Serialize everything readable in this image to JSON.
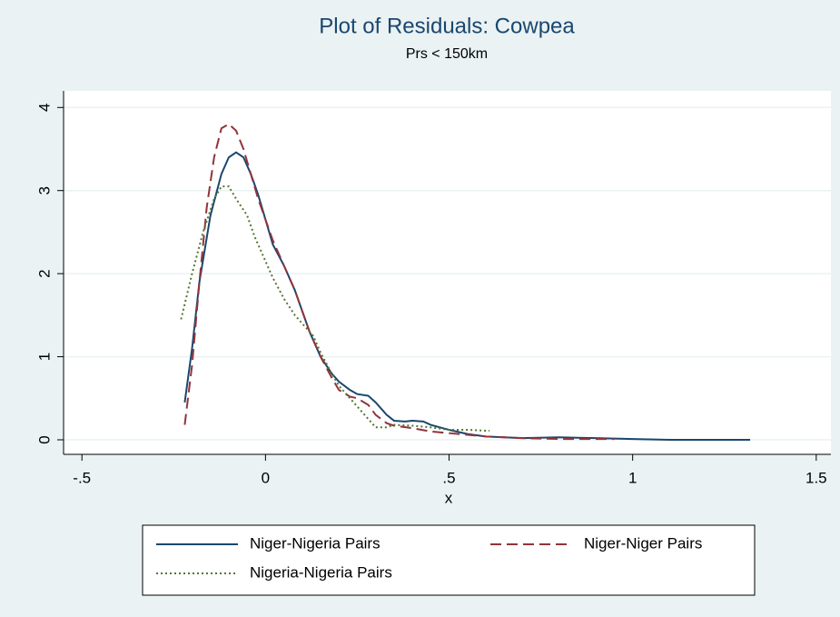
{
  "chart_data": {
    "type": "line",
    "title": "Plot of Residuals: Cowpea",
    "subtitle": "Prs < 150km",
    "x_label": "x",
    "xlim": [
      -0.55,
      1.54
    ],
    "ylim": [
      -0.175,
      4.2
    ],
    "xticks": [
      {
        "value": -0.5,
        "label": "-.5"
      },
      0,
      {
        "value": 0.5,
        "label": ".5"
      },
      1,
      1.5
    ],
    "yticks": [
      0,
      1,
      2,
      3,
      4
    ],
    "grid": true,
    "series": [
      {
        "name": "Niger-Nigeria Pairs",
        "color": "#1a476f",
        "dash": "solid",
        "x": [
          -0.22,
          -0.2,
          -0.18,
          -0.15,
          -0.12,
          -0.1,
          -0.08,
          -0.06,
          -0.04,
          -0.02,
          0,
          0.02,
          0.05,
          0.08,
          0.1,
          0.12,
          0.15,
          0.18,
          0.2,
          0.23,
          0.25,
          0.28,
          0.3,
          0.33,
          0.35,
          0.38,
          0.4,
          0.43,
          0.45,
          0.5,
          0.55,
          0.6,
          0.7,
          0.8,
          0.9,
          1.0,
          1.1,
          1.2,
          1.32
        ],
        "values": [
          0.45,
          1.1,
          1.9,
          2.7,
          3.2,
          3.4,
          3.46,
          3.4,
          3.2,
          2.95,
          2.65,
          2.35,
          2.1,
          1.8,
          1.55,
          1.3,
          1.0,
          0.8,
          0.7,
          0.6,
          0.55,
          0.53,
          0.45,
          0.3,
          0.23,
          0.22,
          0.23,
          0.22,
          0.18,
          0.12,
          0.07,
          0.04,
          0.02,
          0.03,
          0.02,
          0.01,
          0.0,
          0.0,
          0.0
        ]
      },
      {
        "name": "Niger-Niger Pairs",
        "color": "#90353b",
        "dash": "dash",
        "x": [
          -0.22,
          -0.2,
          -0.18,
          -0.16,
          -0.14,
          -0.12,
          -0.1,
          -0.08,
          -0.06,
          -0.04,
          -0.02,
          0,
          0.02,
          0.05,
          0.08,
          0.1,
          0.12,
          0.15,
          0.18,
          0.2,
          0.23,
          0.25,
          0.28,
          0.3,
          0.33,
          0.35,
          0.4,
          0.45,
          0.5,
          0.55,
          0.6,
          0.7,
          0.8,
          0.9,
          0.95
        ],
        "values": [
          0.18,
          0.9,
          1.9,
          2.8,
          3.4,
          3.75,
          3.8,
          3.72,
          3.5,
          3.2,
          2.9,
          2.65,
          2.4,
          2.1,
          1.8,
          1.55,
          1.3,
          1.0,
          0.75,
          0.6,
          0.52,
          0.5,
          0.42,
          0.3,
          0.2,
          0.17,
          0.14,
          0.1,
          0.08,
          0.06,
          0.04,
          0.02,
          0.01,
          0.01,
          0.01
        ]
      },
      {
        "name": "Nigeria-Nigeria Pairs",
        "color": "#55752f",
        "dash": "dot",
        "x": [
          -0.23,
          -0.2,
          -0.17,
          -0.14,
          -0.12,
          -0.1,
          -0.08,
          -0.05,
          -0.03,
          0,
          0.02,
          0.05,
          0.08,
          0.1,
          0.13,
          0.15,
          0.18,
          0.2,
          0.23,
          0.25,
          0.28,
          0.3,
          0.33,
          0.35,
          0.4,
          0.45,
          0.5,
          0.55,
          0.6,
          0.61
        ],
        "values": [
          1.45,
          2.0,
          2.5,
          2.9,
          3.05,
          3.05,
          2.9,
          2.7,
          2.45,
          2.15,
          1.95,
          1.7,
          1.5,
          1.4,
          1.25,
          1.05,
          0.8,
          0.65,
          0.5,
          0.4,
          0.25,
          0.15,
          0.15,
          0.18,
          0.17,
          0.15,
          0.12,
          0.12,
          0.11,
          0.11
        ]
      }
    ]
  }
}
